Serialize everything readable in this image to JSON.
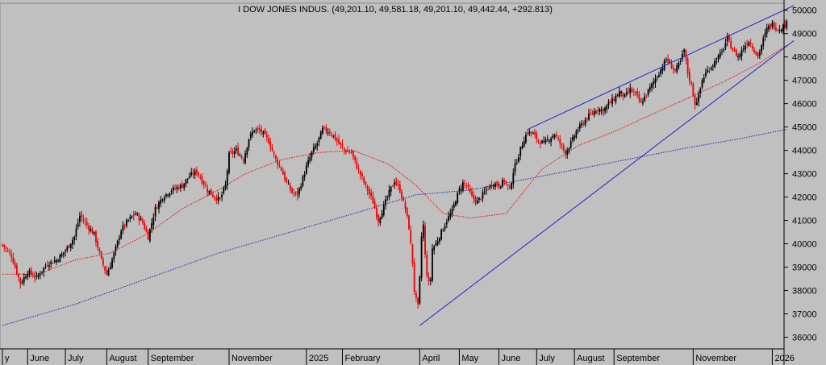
{
  "chart_data": {
    "type": "candlestick",
    "title": "I DOW JONES INDUS. (49,201.10, 49,581.18, 49,201.10, 49,442.44, +292.813)",
    "ylim": [
      35500,
      50300
    ],
    "y_ticks": [
      36000,
      37000,
      38000,
      39000,
      40000,
      41000,
      42000,
      43000,
      44000,
      45000,
      46000,
      47000,
      48000,
      49000,
      50000
    ],
    "x_ticks": [
      {
        "label": "y",
        "i": 0
      },
      {
        "label": "June",
        "i": 14
      },
      {
        "label": "July",
        "i": 35
      },
      {
        "label": "August",
        "i": 58
      },
      {
        "label": "September",
        "i": 81
      },
      {
        "label": "November",
        "i": 126
      },
      {
        "label": "2025",
        "i": 169
      },
      {
        "label": "February",
        "i": 189
      },
      {
        "label": "April",
        "i": 232
      },
      {
        "label": "May",
        "i": 254
      },
      {
        "label": "June",
        "i": 276
      },
      {
        "label": "July",
        "i": 297
      },
      {
        "label": "August",
        "i": 318
      },
      {
        "label": "September",
        "i": 340
      },
      {
        "label": "November",
        "i": 384
      },
      {
        "label": "2026",
        "i": 428
      }
    ],
    "close_anchors": [
      [
        0,
        39950
      ],
      [
        5,
        39500
      ],
      [
        10,
        38300
      ],
      [
        14,
        38800
      ],
      [
        19,
        38550
      ],
      [
        25,
        39150
      ],
      [
        30,
        39300
      ],
      [
        35,
        39700
      ],
      [
        40,
        40300
      ],
      [
        43,
        41200
      ],
      [
        47,
        40800
      ],
      [
        51,
        40400
      ],
      [
        55,
        39300
      ],
      [
        58,
        38700
      ],
      [
        60,
        39100
      ],
      [
        63,
        39800
      ],
      [
        66,
        40600
      ],
      [
        70,
        41000
      ],
      [
        74,
        41300
      ],
      [
        78,
        40900
      ],
      [
        81,
        40300
      ],
      [
        85,
        41500
      ],
      [
        89,
        42000
      ],
      [
        94,
        42300
      ],
      [
        100,
        42500
      ],
      [
        104,
        42900
      ],
      [
        108,
        43100
      ],
      [
        111,
        42700
      ],
      [
        114,
        42300
      ],
      [
        118,
        42000
      ],
      [
        121,
        41900
      ],
      [
        124,
        42500
      ],
      [
        126,
        43800
      ],
      [
        130,
        44000
      ],
      [
        134,
        43600
      ],
      [
        137,
        44500
      ],
      [
        140,
        44900
      ],
      [
        144,
        44800
      ],
      [
        148,
        44400
      ],
      [
        152,
        43600
      ],
      [
        155,
        43200
      ],
      [
        158,
        42600
      ],
      [
        161,
        42200
      ],
      [
        164,
        42100
      ],
      [
        167,
        42800
      ],
      [
        169,
        43300
      ],
      [
        172,
        43900
      ],
      [
        175,
        44300
      ],
      [
        178,
        44900
      ],
      [
        182,
        44800
      ],
      [
        186,
        44400
      ],
      [
        190,
        44000
      ],
      [
        194,
        43900
      ],
      [
        197,
        43300
      ],
      [
        200,
        42800
      ],
      [
        203,
        42300
      ],
      [
        206,
        41800
      ],
      [
        209,
        41000
      ],
      [
        212,
        41600
      ],
      [
        215,
        42200
      ],
      [
        218,
        42700
      ],
      [
        221,
        42300
      ],
      [
        224,
        41500
      ],
      [
        226,
        40700
      ],
      [
        228,
        39200
      ],
      [
        229,
        38000
      ],
      [
        230,
        37600
      ],
      [
        231,
        37300
      ],
      [
        232,
        38500
      ],
      [
        233,
        40300
      ],
      [
        234,
        40800
      ],
      [
        235,
        39500
      ],
      [
        236,
        38700
      ],
      [
        237,
        38300
      ],
      [
        238,
        38500
      ],
      [
        239,
        39800
      ],
      [
        241,
        40000
      ],
      [
        244,
        40500
      ],
      [
        247,
        41000
      ],
      [
        250,
        41400
      ],
      [
        252,
        41900
      ],
      [
        254,
        42300
      ],
      [
        256,
        42600
      ],
      [
        258,
        42500
      ],
      [
        261,
        42000
      ],
      [
        264,
        41800
      ],
      [
        267,
        42100
      ],
      [
        270,
        42400
      ],
      [
        273,
        42600
      ],
      [
        276,
        42500
      ],
      [
        279,
        42700
      ],
      [
        282,
        42300
      ],
      [
        284,
        43100
      ],
      [
        287,
        43800
      ],
      [
        290,
        44500
      ],
      [
        292,
        44800
      ],
      [
        295,
        44700
      ],
      [
        298,
        44400
      ],
      [
        301,
        44300
      ],
      [
        304,
        44500
      ],
      [
        307,
        44700
      ],
      [
        310,
        44300
      ],
      [
        313,
        43900
      ],
      [
        316,
        44300
      ],
      [
        319,
        44800
      ],
      [
        322,
        45100
      ],
      [
        325,
        45400
      ],
      [
        328,
        45600
      ],
      [
        331,
        45800
      ],
      [
        334,
        45700
      ],
      [
        337,
        46000
      ],
      [
        340,
        46200
      ],
      [
        343,
        46500
      ],
      [
        346,
        46300
      ],
      [
        349,
        46600
      ],
      [
        352,
        46400
      ],
      [
        355,
        46000
      ],
      [
        358,
        46400
      ],
      [
        361,
        46800
      ],
      [
        364,
        47200
      ],
      [
        367,
        47600
      ],
      [
        369,
        47900
      ],
      [
        371,
        47700
      ],
      [
        374,
        47400
      ],
      [
        377,
        47800
      ],
      [
        379,
        48300
      ],
      [
        381,
        47300
      ],
      [
        383,
        46800
      ],
      [
        385,
        46000
      ],
      [
        387,
        46300
      ],
      [
        389,
        47000
      ],
      [
        391,
        47300
      ],
      [
        394,
        47600
      ],
      [
        397,
        47900
      ],
      [
        400,
        48200
      ],
      [
        403,
        48800
      ],
      [
        406,
        48300
      ],
      [
        409,
        48000
      ],
      [
        412,
        48400
      ],
      [
        415,
        48700
      ],
      [
        418,
        48300
      ],
      [
        420,
        48000
      ],
      [
        422,
        48500
      ],
      [
        425,
        49200
      ],
      [
        428,
        49400
      ],
      [
        431,
        49200
      ],
      [
        434,
        49300
      ],
      [
        436,
        49442
      ]
    ],
    "ma_short_anchors": [
      [
        0,
        38700
      ],
      [
        20,
        38700
      ],
      [
        40,
        39300
      ],
      [
        60,
        39600
      ],
      [
        80,
        40400
      ],
      [
        100,
        41500
      ],
      [
        120,
        42300
      ],
      [
        135,
        43000
      ],
      [
        155,
        43600
      ],
      [
        175,
        43900
      ],
      [
        195,
        44000
      ],
      [
        215,
        43400
      ],
      [
        230,
        42500
      ],
      [
        245,
        41300
      ],
      [
        260,
        41100
      ],
      [
        280,
        41300
      ],
      [
        300,
        43200
      ],
      [
        320,
        44200
      ],
      [
        340,
        44800
      ],
      [
        360,
        45500
      ],
      [
        380,
        46200
      ],
      [
        400,
        46900
      ],
      [
        420,
        47700
      ],
      [
        436,
        48500
      ]
    ],
    "ma_long_anchors": [
      [
        0,
        36500
      ],
      [
        40,
        37400
      ],
      [
        80,
        38500
      ],
      [
        120,
        39600
      ],
      [
        160,
        40500
      ],
      [
        200,
        41400
      ],
      [
        230,
        42100
      ],
      [
        260,
        42300
      ],
      [
        300,
        42900
      ],
      [
        340,
        43500
      ],
      [
        380,
        44100
      ],
      [
        410,
        44500
      ],
      [
        436,
        44900
      ]
    ],
    "trendlines": [
      {
        "from": [
          292,
          44900
        ],
        "to": [
          440,
          50200
        ]
      },
      {
        "from": [
          232,
          36500
        ],
        "to": [
          440,
          48700
        ]
      }
    ],
    "colors": {
      "background": "#c0c0c0",
      "up_candle": "#000000",
      "down_candle": "#ee0000",
      "ma_short": "#ee0000",
      "ma_long": "#2020a0",
      "trendline": "#2020d0"
    }
  }
}
